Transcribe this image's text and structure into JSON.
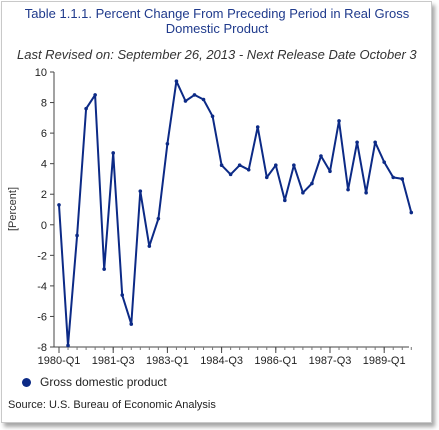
{
  "chart_data": {
    "type": "line",
    "title": "Table 1.1.1. Percent Change From Preceding Period in Real Gross Domestic Product",
    "subtitle": "Last Revised on: September 26, 2013 - Next Release Date October 3",
    "ylabel": "[Percent]",
    "xlabel": "",
    "ylim": [
      -8,
      10
    ],
    "yticks": [
      "10",
      "8",
      "6",
      "4",
      "2",
      "0",
      "-2",
      "-4",
      "-6",
      "-8"
    ],
    "xtick_labels": [
      "1980-Q1",
      "1981-Q3",
      "1983-Q1",
      "1984-Q3",
      "1986-Q1",
      "1987-Q3",
      "1989-Q1"
    ],
    "grid": false,
    "legend_position": "bottom-left",
    "color": "#0c2a86",
    "x": [
      "1980-Q1",
      "1980-Q2",
      "1980-Q3",
      "1980-Q4",
      "1981-Q1",
      "1981-Q2",
      "1981-Q3",
      "1981-Q4",
      "1982-Q1",
      "1982-Q2",
      "1982-Q3",
      "1982-Q4",
      "1983-Q1",
      "1983-Q2",
      "1983-Q3",
      "1983-Q4",
      "1984-Q1",
      "1984-Q2",
      "1984-Q3",
      "1984-Q4",
      "1985-Q1",
      "1985-Q2",
      "1985-Q3",
      "1985-Q4",
      "1986-Q1",
      "1986-Q2",
      "1986-Q3",
      "1986-Q4",
      "1987-Q1",
      "1987-Q2",
      "1987-Q3",
      "1987-Q4",
      "1988-Q1",
      "1988-Q2",
      "1988-Q3",
      "1988-Q4",
      "1989-Q1",
      "1989-Q2",
      "1989-Q3",
      "1989-Q4"
    ],
    "series": [
      {
        "name": "Gross domestic product",
        "values": [
          1.3,
          -7.9,
          -0.7,
          7.6,
          8.5,
          -2.9,
          4.7,
          -4.6,
          -6.5,
          2.2,
          -1.4,
          0.4,
          5.3,
          9.4,
          8.1,
          8.5,
          8.2,
          7.1,
          3.9,
          3.3,
          3.9,
          3.6,
          6.4,
          3.1,
          3.9,
          1.6,
          3.9,
          2.1,
          2.7,
          4.5,
          3.5,
          6.8,
          2.3,
          5.4,
          2.1,
          5.4,
          4.1,
          3.1,
          3.0,
          0.8
        ]
      }
    ]
  },
  "source": "Source: U.S. Bureau of Economic Analysis"
}
